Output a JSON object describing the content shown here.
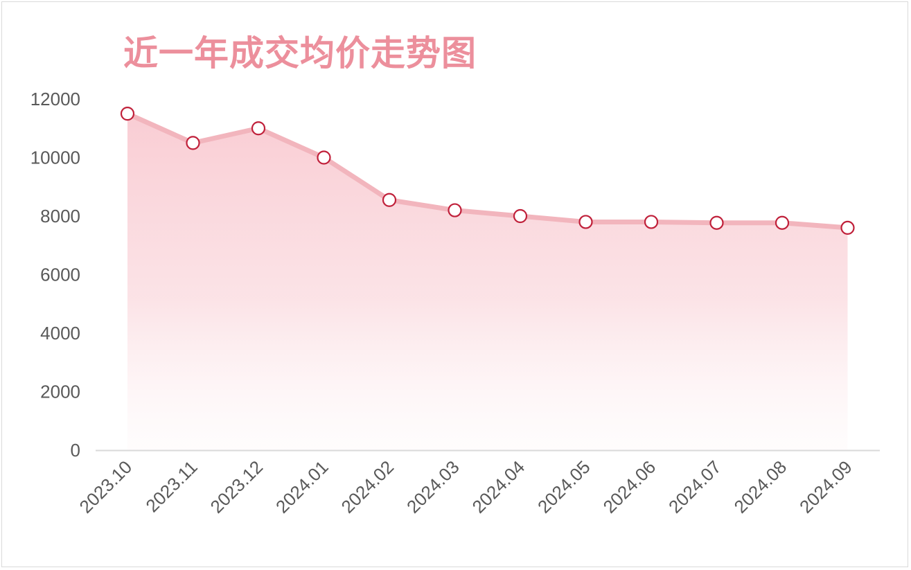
{
  "chart_data": {
    "type": "area",
    "title": "近一年成交均价走势图",
    "xlabel": "",
    "ylabel": "",
    "categories": [
      "2023.10",
      "2023.11",
      "2023.12",
      "2024.01",
      "2024.02",
      "2024.03",
      "2024.04",
      "2024.05",
      "2024.06",
      "2024.07",
      "2024.08",
      "2024.09"
    ],
    "series": [
      {
        "values": [
          11500,
          10500,
          11000,
          10000,
          8550,
          8200,
          8000,
          7800,
          7800,
          7770,
          7770,
          7600
        ]
      }
    ],
    "ylim": [
      0,
      12000
    ],
    "yticks": [
      "0",
      "2000",
      "4000",
      "6000",
      "8000",
      "10000",
      "12000"
    ],
    "grid": false,
    "legend": "none",
    "colors": {
      "line": "#f2b5bd",
      "area_top": "#f8c8cf",
      "marker_stroke": "#c0203a",
      "marker_fill": "#ffffff",
      "title": "#ec8f9c",
      "axis": "#d9d9d9",
      "tick_text": "#595959"
    }
  }
}
